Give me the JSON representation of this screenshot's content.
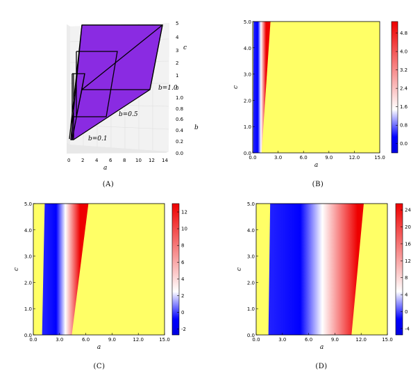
{
  "chart_data": [
    {
      "id": "A",
      "type": "3d-surface",
      "caption": "(A)",
      "xlabel": "a",
      "ylabel": "b",
      "zlabel": "c",
      "x_ticks": [
        "0",
        "2",
        "4",
        "6",
        "8",
        "10",
        "12",
        "14"
      ],
      "y_ticks": [
        "0.0",
        "0.2",
        "0.4",
        "0.6",
        "0.8",
        "1.0"
      ],
      "z_ticks": [
        "0",
        "1",
        "2",
        "3",
        "4",
        "5"
      ],
      "surface_color": "#8a2be2",
      "slice_labels": [
        "b=1.0",
        "b=0.5",
        "b=0.1"
      ]
    },
    {
      "id": "B",
      "type": "heatmap",
      "caption": "(B)",
      "xlabel": "a",
      "ylabel": "c",
      "xlim": [
        0,
        15
      ],
      "ylim": [
        0,
        5
      ],
      "x_ticks": [
        "0.0",
        "3.0",
        "6.0",
        "9.0",
        "12.0",
        "15.0"
      ],
      "y_ticks": [
        "0.0",
        "1.0",
        "2.0",
        "3.0",
        "4.0",
        "5.0"
      ],
      "colorbar_ticks": [
        "4.8",
        "4.0",
        "3.2",
        "2.4",
        "1.6",
        "0.8",
        "0.0"
      ],
      "colorbar_range": [
        -0.4,
        5.3
      ],
      "bands": {
        "blue_start": [
          0.05,
          0.1
        ],
        "red_end": [
          1.05,
          2.1
        ]
      }
    },
    {
      "id": "C",
      "type": "heatmap",
      "caption": "(C)",
      "xlabel": "a",
      "ylabel": "c",
      "xlim": [
        0,
        15
      ],
      "ylim": [
        0,
        5
      ],
      "x_ticks": [
        "0.0",
        "3.0",
        "6.0",
        "9.0",
        "12.0",
        "15.0"
      ],
      "y_ticks": [
        "0.0",
        "1.0",
        "2.0",
        "3.0",
        "4.0",
        "5.0"
      ],
      "colorbar_ticks": [
        "12",
        "10",
        "8",
        "6",
        "4",
        "2",
        "0",
        "-2"
      ],
      "colorbar_range": [
        -2.7,
        13
      ],
      "bands": {
        "blue_start": [
          1.0,
          1.3
        ],
        "red_end": [
          4.4,
          6.3
        ]
      }
    },
    {
      "id": "D",
      "type": "heatmap",
      "caption": "(D)",
      "xlabel": "a",
      "ylabel": "c",
      "xlim": [
        0,
        15
      ],
      "ylim": [
        0,
        5
      ],
      "x_ticks": [
        "0.0",
        "3.0",
        "6.0",
        "9.0",
        "12.0",
        "15.0"
      ],
      "y_ticks": [
        "0.0",
        "1.0",
        "2.0",
        "3.0",
        "4.0",
        "5.0"
      ],
      "colorbar_ticks": [
        "24",
        "20",
        "16",
        "12",
        "8",
        "4",
        "0",
        "-4"
      ],
      "colorbar_range": [
        -5.5,
        25.5
      ],
      "bands": {
        "blue_start": [
          1.4,
          1.6
        ],
        "red_end": [
          10.9,
          12.3
        ]
      }
    }
  ]
}
